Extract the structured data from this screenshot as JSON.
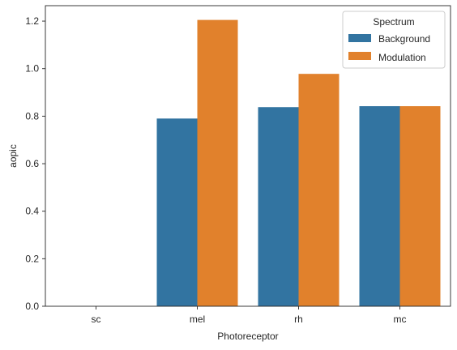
{
  "chart_data": {
    "type": "bar",
    "xlabel": "Photoreceptor",
    "ylabel": "aopic",
    "categories": [
      "sc",
      "mel",
      "rh",
      "mc"
    ],
    "ylim": [
      0,
      1.265
    ],
    "yticks": [
      0.0,
      0.2,
      0.4,
      0.6,
      0.8,
      1.0,
      1.2
    ],
    "ytick_labels": [
      "0.0",
      "0.2",
      "0.4",
      "0.6",
      "0.8",
      "1.0",
      "1.2"
    ],
    "grid": false,
    "legend": {
      "title": "Spectrum",
      "placement": "top-right"
    },
    "series": [
      {
        "name": "Background",
        "color": "#3274a1",
        "values": [
          0.0,
          0.79,
          0.838,
          0.842
        ]
      },
      {
        "name": "Modulation",
        "color": "#e1812c",
        "values": [
          0.0,
          1.205,
          0.978,
          0.842
        ]
      }
    ]
  }
}
